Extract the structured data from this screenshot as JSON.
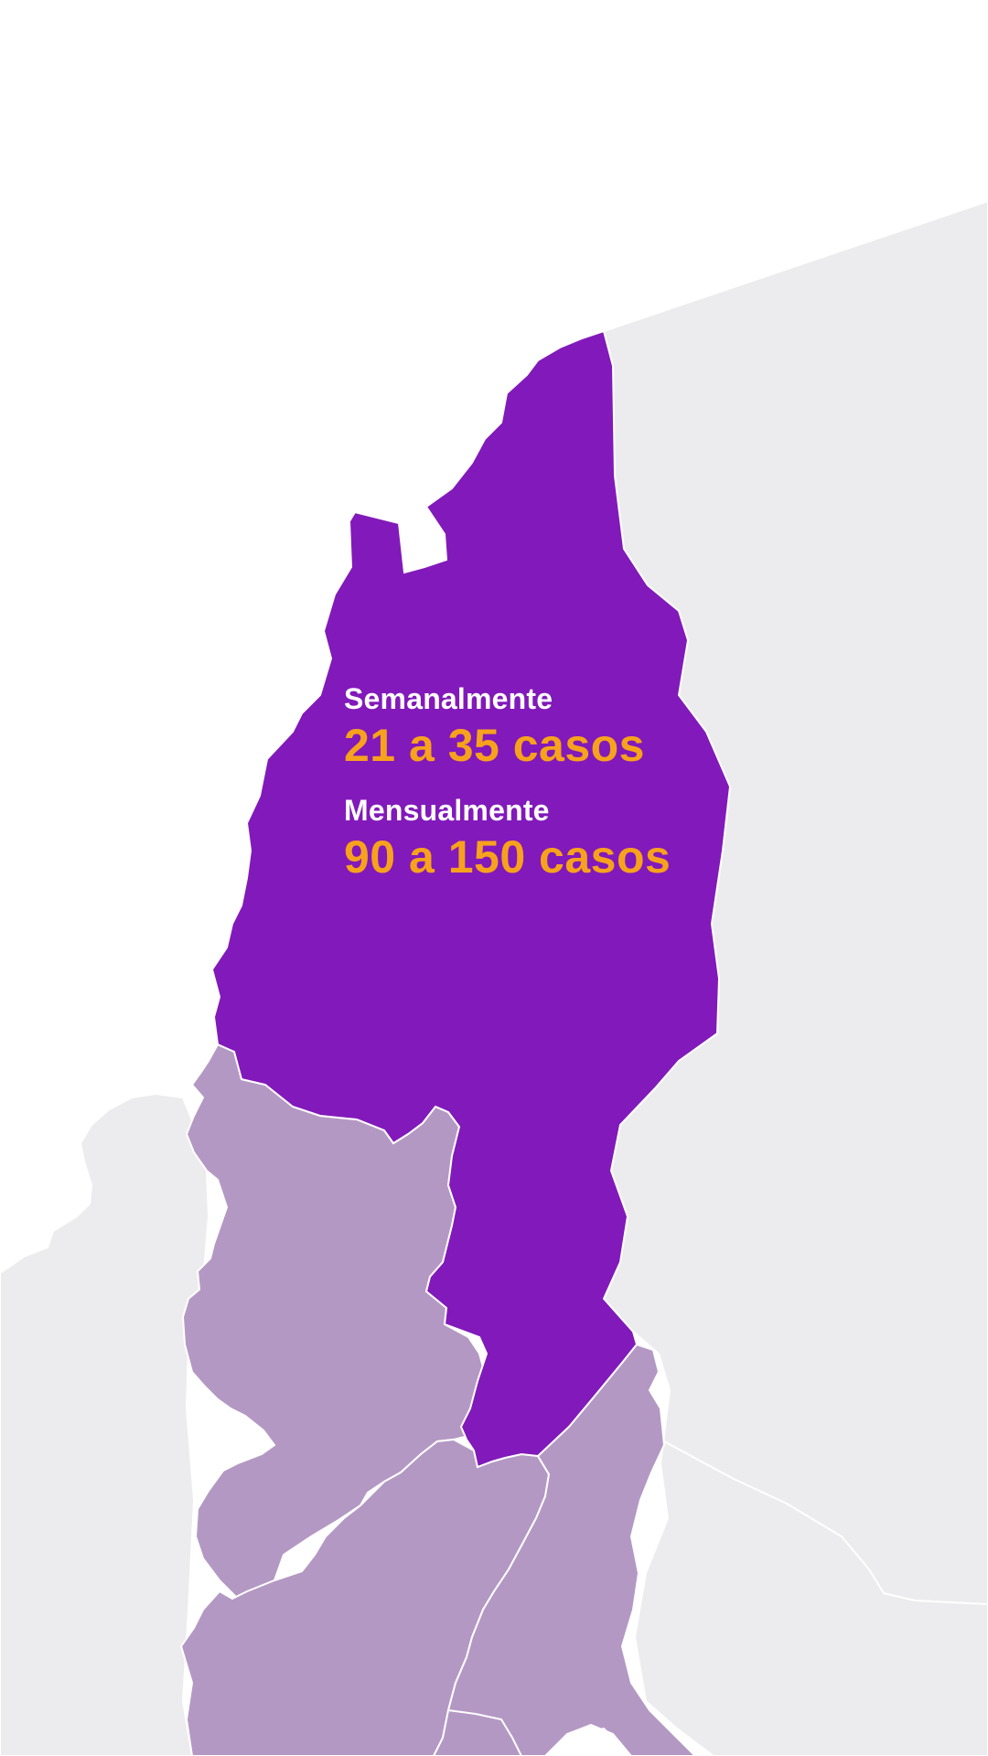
{
  "map": {
    "colors": {
      "background": "#ffffff",
      "neighbor_land": "#ececee",
      "highlighted_region": "#8219ba",
      "adjacent_regions": "#b498c4",
      "borders": "#ffffff"
    },
    "regions": {
      "highlighted": "highlighted-region",
      "adjacent": [
        "adjacent-region-west",
        "adjacent-region-south",
        "adjacent-region-southeast"
      ]
    }
  },
  "stats": {
    "weekly_label": "Semanalmente",
    "weekly_value": "21 a 35 casos",
    "monthly_label": "Mensualmente",
    "monthly_value": "90 a 150 casos"
  }
}
